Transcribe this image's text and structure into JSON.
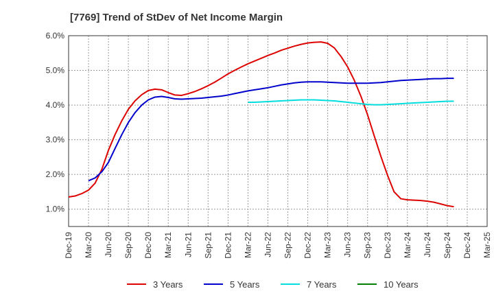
{
  "chart_data": {
    "type": "line",
    "title": "[7769]  Trend of StDev of Net Income Margin",
    "xlabel": "",
    "ylabel": "",
    "ylim": [
      0.5,
      6.0
    ],
    "yticks": [
      "1.0%",
      "2.0%",
      "3.0%",
      "4.0%",
      "5.0%",
      "6.0%"
    ],
    "ytick_values": [
      1.0,
      2.0,
      3.0,
      4.0,
      5.0,
      6.0
    ],
    "x_ticks": [
      "Dec-19",
      "Mar-20",
      "Jun-20",
      "Sep-20",
      "Dec-20",
      "Mar-21",
      "Jun-21",
      "Sep-21",
      "Dec-21",
      "Mar-22",
      "Jun-22",
      "Sep-22",
      "Dec-22",
      "Mar-23",
      "Jun-23",
      "Sep-23",
      "Dec-23",
      "Mar-24",
      "Jun-24",
      "Sep-24",
      "Dec-24",
      "Mar-25"
    ],
    "grid": true,
    "legend_position": "bottom",
    "series": [
      {
        "name": "3 Years",
        "color": "#dd0000",
        "points": [
          [
            0,
            1.35
          ],
          [
            0.33,
            1.38
          ],
          [
            0.67,
            1.45
          ],
          [
            1,
            1.55
          ],
          [
            1.33,
            1.75
          ],
          [
            1.67,
            2.15
          ],
          [
            2,
            2.7
          ],
          [
            2.33,
            3.15
          ],
          [
            2.67,
            3.55
          ],
          [
            3,
            3.88
          ],
          [
            3.33,
            4.12
          ],
          [
            3.67,
            4.3
          ],
          [
            4,
            4.42
          ],
          [
            4.33,
            4.46
          ],
          [
            4.67,
            4.44
          ],
          [
            5,
            4.36
          ],
          [
            5.33,
            4.29
          ],
          [
            5.67,
            4.28
          ],
          [
            6,
            4.33
          ],
          [
            6.33,
            4.39
          ],
          [
            6.67,
            4.47
          ],
          [
            7,
            4.56
          ],
          [
            7.33,
            4.66
          ],
          [
            7.67,
            4.78
          ],
          [
            8,
            4.9
          ],
          [
            8.33,
            5.0
          ],
          [
            8.67,
            5.1
          ],
          [
            9,
            5.19
          ],
          [
            9.33,
            5.27
          ],
          [
            9.67,
            5.35
          ],
          [
            10,
            5.43
          ],
          [
            10.33,
            5.5
          ],
          [
            10.67,
            5.58
          ],
          [
            11,
            5.64
          ],
          [
            11.33,
            5.7
          ],
          [
            11.67,
            5.75
          ],
          [
            12,
            5.79
          ],
          [
            12.33,
            5.81
          ],
          [
            12.67,
            5.82
          ],
          [
            13,
            5.78
          ],
          [
            13.33,
            5.65
          ],
          [
            13.67,
            5.4
          ],
          [
            14,
            5.1
          ],
          [
            14.33,
            4.72
          ],
          [
            14.67,
            4.25
          ],
          [
            15,
            3.72
          ],
          [
            15.33,
            3.12
          ],
          [
            15.67,
            2.52
          ],
          [
            16,
            1.98
          ],
          [
            16.33,
            1.5
          ],
          [
            16.67,
            1.3
          ],
          [
            17,
            1.27
          ],
          [
            17.33,
            1.26
          ],
          [
            17.67,
            1.25
          ],
          [
            18,
            1.23
          ],
          [
            18.33,
            1.2
          ],
          [
            18.67,
            1.15
          ],
          [
            19,
            1.1
          ],
          [
            19.33,
            1.07
          ]
        ]
      },
      {
        "name": "5 Years",
        "color": "#0000cc",
        "points": [
          [
            1,
            1.82
          ],
          [
            1.33,
            1.9
          ],
          [
            1.67,
            2.08
          ],
          [
            2,
            2.35
          ],
          [
            2.33,
            2.75
          ],
          [
            2.67,
            3.15
          ],
          [
            3,
            3.5
          ],
          [
            3.33,
            3.78
          ],
          [
            3.67,
            4.0
          ],
          [
            4,
            4.15
          ],
          [
            4.33,
            4.23
          ],
          [
            4.67,
            4.25
          ],
          [
            5,
            4.22
          ],
          [
            5.33,
            4.18
          ],
          [
            5.67,
            4.17
          ],
          [
            6,
            4.18
          ],
          [
            6.33,
            4.19
          ],
          [
            6.67,
            4.2
          ],
          [
            7,
            4.22
          ],
          [
            7.33,
            4.24
          ],
          [
            7.67,
            4.26
          ],
          [
            8,
            4.29
          ],
          [
            8.33,
            4.33
          ],
          [
            8.67,
            4.37
          ],
          [
            9,
            4.41
          ],
          [
            9.33,
            4.44
          ],
          [
            9.67,
            4.47
          ],
          [
            10,
            4.5
          ],
          [
            10.33,
            4.54
          ],
          [
            10.67,
            4.58
          ],
          [
            11,
            4.61
          ],
          [
            11.33,
            4.64
          ],
          [
            11.67,
            4.66
          ],
          [
            12,
            4.67
          ],
          [
            12.33,
            4.67
          ],
          [
            12.67,
            4.67
          ],
          [
            13,
            4.66
          ],
          [
            13.33,
            4.65
          ],
          [
            13.67,
            4.64
          ],
          [
            14,
            4.63
          ],
          [
            14.33,
            4.63
          ],
          [
            14.67,
            4.63
          ],
          [
            15,
            4.63
          ],
          [
            15.33,
            4.64
          ],
          [
            15.67,
            4.65
          ],
          [
            16,
            4.67
          ],
          [
            16.33,
            4.69
          ],
          [
            16.67,
            4.71
          ],
          [
            17,
            4.72
          ],
          [
            17.33,
            4.73
          ],
          [
            17.67,
            4.74
          ],
          [
            18,
            4.75
          ],
          [
            18.33,
            4.76
          ],
          [
            18.67,
            4.76
          ],
          [
            19,
            4.77
          ],
          [
            19.33,
            4.77
          ]
        ]
      },
      {
        "name": "7 Years",
        "color": "#00dddd",
        "points": [
          [
            9,
            4.08
          ],
          [
            9.33,
            4.08
          ],
          [
            9.67,
            4.09
          ],
          [
            10,
            4.1
          ],
          [
            10.33,
            4.11
          ],
          [
            10.67,
            4.12
          ],
          [
            11,
            4.13
          ],
          [
            11.33,
            4.14
          ],
          [
            11.67,
            4.15
          ],
          [
            12,
            4.15
          ],
          [
            12.33,
            4.15
          ],
          [
            12.67,
            4.14
          ],
          [
            13,
            4.13
          ],
          [
            13.33,
            4.12
          ],
          [
            13.67,
            4.1
          ],
          [
            14,
            4.08
          ],
          [
            14.33,
            4.06
          ],
          [
            14.67,
            4.04
          ],
          [
            15,
            4.02
          ],
          [
            15.33,
            4.01
          ],
          [
            15.67,
            4.01
          ],
          [
            16,
            4.02
          ],
          [
            16.33,
            4.03
          ],
          [
            16.67,
            4.04
          ],
          [
            17,
            4.05
          ],
          [
            17.33,
            4.06
          ],
          [
            17.67,
            4.07
          ],
          [
            18,
            4.08
          ],
          [
            18.33,
            4.09
          ],
          [
            18.67,
            4.1
          ],
          [
            19,
            4.11
          ],
          [
            19.33,
            4.11
          ]
        ]
      },
      {
        "name": "10 Years",
        "color": "#008000",
        "points": []
      }
    ]
  }
}
